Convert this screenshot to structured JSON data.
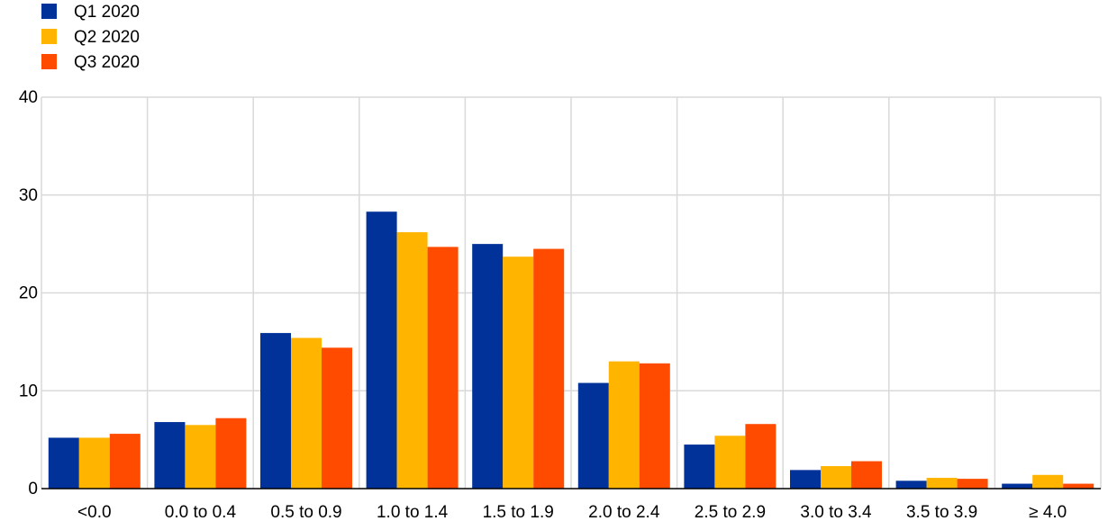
{
  "chart_data": {
    "type": "bar",
    "categories": [
      "<0.0",
      "0.0 to 0.4",
      "0.5 to 0.9",
      "1.0 to 1.4",
      "1.5 to 1.9",
      "2.0 to 2.4",
      "2.5 to 2.9",
      "3.0 to 3.4",
      "3.5 to 3.9",
      "≥ 4.0"
    ],
    "series": [
      {
        "name": "Q1 2020",
        "color": "#003299",
        "values": [
          5.2,
          6.8,
          15.9,
          28.3,
          25.0,
          10.8,
          4.5,
          1.9,
          0.8,
          0.5
        ]
      },
      {
        "name": "Q2 2020",
        "color": "#FFB400",
        "values": [
          5.2,
          6.5,
          15.4,
          26.2,
          23.7,
          13.0,
          5.4,
          2.3,
          1.1,
          1.4
        ]
      },
      {
        "name": "Q3 2020",
        "color": "#FF4B00",
        "values": [
          5.6,
          7.2,
          14.4,
          24.7,
          24.5,
          12.8,
          6.6,
          2.8,
          1.0,
          0.5
        ]
      }
    ],
    "title": "",
    "xlabel": "",
    "ylabel": "",
    "ylim": [
      0,
      40
    ],
    "yticks": [
      0,
      10,
      20,
      30,
      40
    ],
    "grid": true,
    "legend_position": "top-left"
  }
}
